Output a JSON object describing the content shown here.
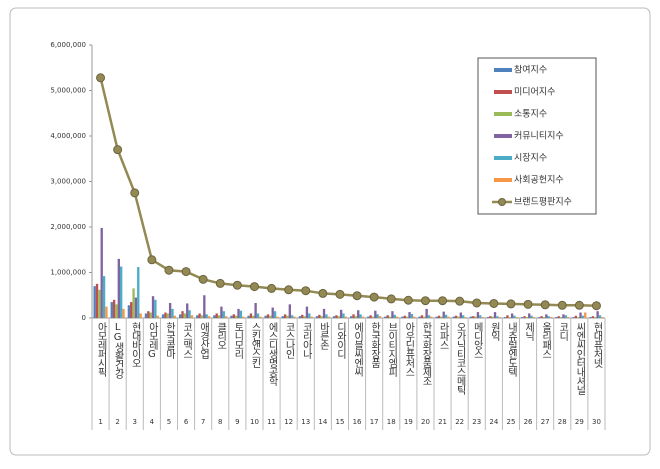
{
  "chart_data": {
    "type": "bar-line",
    "categories": [
      "아모레퍼시픽",
      "LG생활건강",
      "현대바이오",
      "아모레G",
      "한국콜마",
      "코스맥스",
      "애경산업",
      "클리오",
      "토니모리",
      "스킨앤스킨",
      "에스디생명공학",
      "코스나인",
      "코리아나",
      "바른손",
      "디와이디",
      "에이블씨엔씨",
      "한국화장품",
      "브이티지엠피",
      "아우딘퓨처스",
      "한국화장품제조",
      "라파스",
      "오가닉티코스메틱",
      "메디앙스",
      "원익",
      "내츄럴엔도텍",
      "제닉",
      "올리패스",
      "코디",
      "씨엔씨인터내셔널",
      "현대퓨처넷"
    ],
    "ranks": [
      1,
      2,
      3,
      4,
      5,
      6,
      7,
      8,
      9,
      10,
      11,
      12,
      13,
      14,
      15,
      16,
      17,
      18,
      19,
      20,
      21,
      22,
      23,
      24,
      25,
      26,
      27,
      28,
      29,
      30
    ],
    "ylim": [
      0,
      6000000
    ],
    "yticks": [
      0,
      {
        "value": 1000000,
        "label": "1,000,000"
      },
      {
        "value": 2000000,
        "label": "2,000,000"
      },
      {
        "value": 3000000,
        "label": "3,000,000"
      },
      {
        "value": 4000000,
        "label": "4,000,000"
      },
      {
        "value": 5000000,
        "label": "5,000,000"
      },
      {
        "value": 6000000,
        "label": "6,000,000"
      }
    ],
    "legend_position": "upper right",
    "series": [
      {
        "name": "참여지수",
        "color": "#4f81bd",
        "values": [
          700000,
          350000,
          280000,
          100000,
          80000,
          80000,
          60000,
          60000,
          50000,
          50000,
          50000,
          40000,
          40000,
          40000,
          40000,
          40000,
          30000,
          30000,
          30000,
          30000,
          30000,
          30000,
          30000,
          20000,
          20000,
          20000,
          20000,
          20000,
          20000,
          20000
        ]
      },
      {
        "name": "미디어지수",
        "color": "#c0504d",
        "values": [
          750000,
          400000,
          350000,
          150000,
          120000,
          150000,
          100000,
          100000,
          80000,
          100000,
          80000,
          80000,
          70000,
          70000,
          60000,
          80000,
          60000,
          60000,
          50000,
          60000,
          50000,
          50000,
          40000,
          40000,
          60000,
          40000,
          40000,
          40000,
          50000,
          40000
        ]
      },
      {
        "name": "소통지수",
        "color": "#9bbb59",
        "values": [
          620000,
          300000,
          650000,
          120000,
          100000,
          100000,
          60000,
          60000,
          50000,
          50000,
          50000,
          50000,
          40000,
          40000,
          40000,
          40000,
          30000,
          30000,
          30000,
          30000,
          30000,
          30000,
          30000,
          30000,
          20000,
          20000,
          20000,
          20000,
          20000,
          20000
        ]
      },
      {
        "name": "커뮤니티지수",
        "color": "#8064a2",
        "values": [
          1980000,
          1300000,
          450000,
          480000,
          330000,
          320000,
          500000,
          250000,
          200000,
          330000,
          230000,
          300000,
          250000,
          200000,
          180000,
          170000,
          160000,
          150000,
          130000,
          200000,
          140000,
          120000,
          130000,
          130000,
          100000,
          100000,
          80000,
          80000,
          120000,
          150000
        ]
      },
      {
        "name": "시장지수",
        "color": "#4bacc6",
        "values": [
          920000,
          1130000,
          1120000,
          400000,
          200000,
          170000,
          80000,
          150000,
          160000,
          100000,
          150000,
          60000,
          100000,
          80000,
          100000,
          80000,
          80000,
          70000,
          90000,
          60000,
          70000,
          60000,
          60000,
          40000,
          50000,
          50000,
          40000,
          60000,
          50000,
          60000
        ]
      },
      {
        "name": "사회공헌지수",
        "color": "#f79646",
        "values": [
          250000,
          200000,
          100000,
          50000,
          50000,
          60000,
          40000,
          40000,
          30000,
          30000,
          30000,
          30000,
          30000,
          30000,
          30000,
          30000,
          40000,
          30000,
          30000,
          30000,
          30000,
          20000,
          20000,
          20000,
          20000,
          20000,
          20000,
          20000,
          120000,
          20000
        ]
      },
      {
        "name": "브랜드평판지수",
        "color": "#938953",
        "kind": "line",
        "values": [
          5280000,
          3700000,
          2750000,
          1280000,
          1050000,
          1020000,
          850000,
          760000,
          720000,
          690000,
          650000,
          620000,
          600000,
          540000,
          520000,
          490000,
          460000,
          420000,
          390000,
          380000,
          380000,
          370000,
          330000,
          320000,
          310000,
          300000,
          290000,
          280000,
          280000,
          270000
        ]
      }
    ]
  }
}
